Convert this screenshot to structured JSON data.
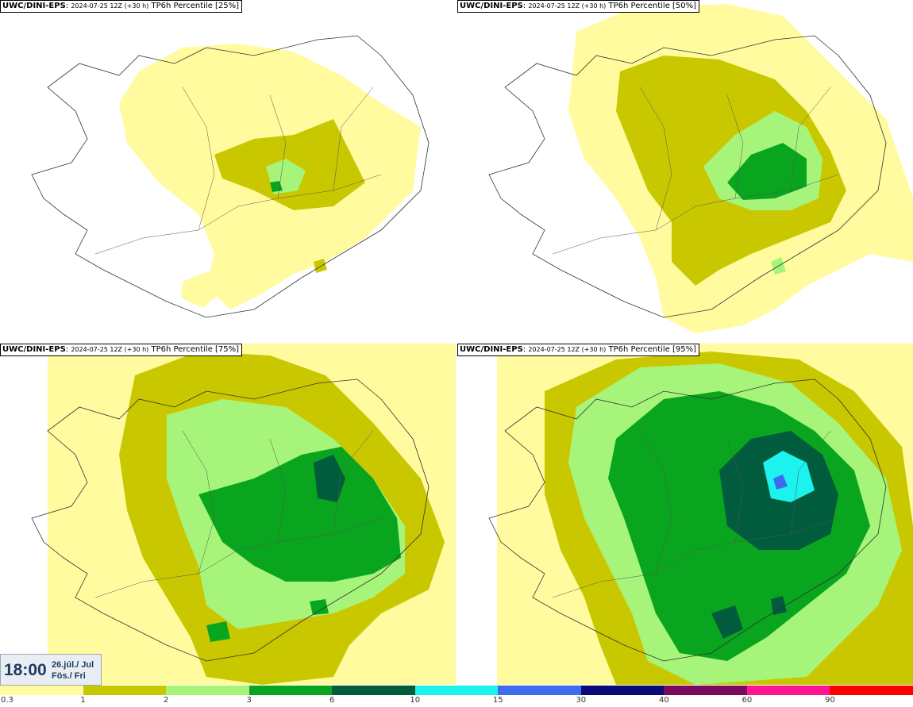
{
  "panels": [
    {
      "model": "UWC/DINI-EPS",
      "run": "2024-07-25 12Z (+30 h)",
      "product": "TP6h Percentile [25%]"
    },
    {
      "model": "UWC/DINI-EPS",
      "run": "2024-07-25 12Z (+30 h)",
      "product": "TP6h Percentile [50%]"
    },
    {
      "model": "UWC/DINI-EPS",
      "run": "2024-07-25 12Z (+30 h)",
      "product": "TP6h Percentile [75%]"
    },
    {
      "model": "UWC/DINI-EPS",
      "run": "2024-07-25 12Z (+30 h)",
      "product": "TP6h Percentile [95%]"
    }
  ],
  "valid_time": {
    "time": "18:00",
    "date_line1": "26.júl./ Jul",
    "date_line2": "Fös./ Fri"
  },
  "legend": {
    "ticks": [
      "0.3",
      "1",
      "2",
      "3",
      "6",
      "10",
      "15",
      "30",
      "40",
      "60",
      "90"
    ],
    "colors": [
      "#fffb9e",
      "#c9c800",
      "#a6f57a",
      "#0aa51e",
      "#005c3c",
      "#1cf2ee",
      "#3d6cf0",
      "#0a0a78",
      "#7c0a5c",
      "#ff1493",
      "#ff0000"
    ]
  },
  "colors": {
    "light_yellow": "#fffb9e",
    "olive": "#c9c800",
    "light_green": "#a6f57a",
    "green": "#0aa51e",
    "dark_green": "#005c3c",
    "cyan": "#1cf2ee",
    "blue": "#3d6cf0",
    "outline": "#333333"
  }
}
